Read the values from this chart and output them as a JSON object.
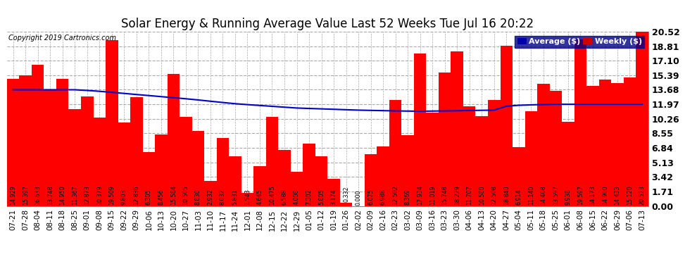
{
  "title": "Solar Energy & Running Average Value Last 52 Weeks Tue Jul 16 20:22",
  "copyright": "Copyright 2019 Cartronics.com",
  "categories": [
    "07-21",
    "07-28",
    "08-04",
    "08-11",
    "08-18",
    "08-25",
    "09-01",
    "09-08",
    "09-15",
    "09-22",
    "09-29",
    "10-06",
    "10-13",
    "10-20",
    "10-27",
    "11-03",
    "11-10",
    "11-17",
    "11-24",
    "12-01",
    "12-08",
    "12-15",
    "12-22",
    "12-29",
    "01-05",
    "01-12",
    "01-19",
    "01-26",
    "02-02",
    "02-09",
    "02-16",
    "02-23",
    "03-02",
    "03-09",
    "03-16",
    "03-23",
    "03-30",
    "04-06",
    "04-13",
    "04-20",
    "04-27",
    "05-04",
    "05-11",
    "05-18",
    "05-25",
    "06-01",
    "06-08",
    "06-15",
    "06-22",
    "06-29",
    "07-06",
    "07-13"
  ],
  "weekly_values": [
    14.929,
    15.397,
    16.633,
    13.748,
    14.95,
    11.367,
    12.873,
    10.379,
    19.509,
    9.803,
    12.836,
    6.305,
    8.456,
    15.584,
    10.505,
    8.83,
    2.932,
    8.032,
    5.831,
    1.543,
    4.645,
    10.475,
    6.588,
    4.008,
    7.302,
    5.805,
    3.174,
    0.332,
    0.0,
    6.075,
    6.988,
    12.502,
    8.369,
    17.934,
    11.019,
    15.748,
    18.229,
    11.707,
    10.58,
    12.508,
    18.84,
    6.914,
    11.14,
    14.408,
    13.597,
    9.938,
    19.597,
    14.173,
    14.9,
    14.433,
    15.12,
    20.523
  ],
  "average_values": [
    13.68,
    13.68,
    13.68,
    13.68,
    13.68,
    13.68,
    13.6,
    13.5,
    13.38,
    13.25,
    13.12,
    13.0,
    12.87,
    12.75,
    12.62,
    12.48,
    12.33,
    12.18,
    12.04,
    11.93,
    11.83,
    11.73,
    11.63,
    11.53,
    11.48,
    11.43,
    11.38,
    11.33,
    11.28,
    11.25,
    11.22,
    11.19,
    11.17,
    11.15,
    11.17,
    11.19,
    11.21,
    11.24,
    11.26,
    11.28,
    11.75,
    11.85,
    11.9,
    11.94,
    11.97,
    11.97,
    11.97,
    11.97,
    11.97,
    11.97,
    11.97,
    11.97
  ],
  "bar_color": "#ff0000",
  "line_color": "#0000cc",
  "background_color": "#ffffff",
  "grid_color": "#aaaaaa",
  "yticks": [
    0.0,
    1.71,
    3.42,
    5.13,
    6.84,
    8.55,
    10.26,
    11.97,
    13.68,
    15.39,
    17.1,
    18.81,
    20.52
  ],
  "ylim": [
    0,
    20.52
  ],
  "title_fontsize": 12,
  "tick_fontsize": 7.5,
  "ytick_fontsize": 9,
  "label_fontsize": 5.8,
  "legend_avg_color": "#0000aa",
  "legend_weekly_color": "#cc0000"
}
